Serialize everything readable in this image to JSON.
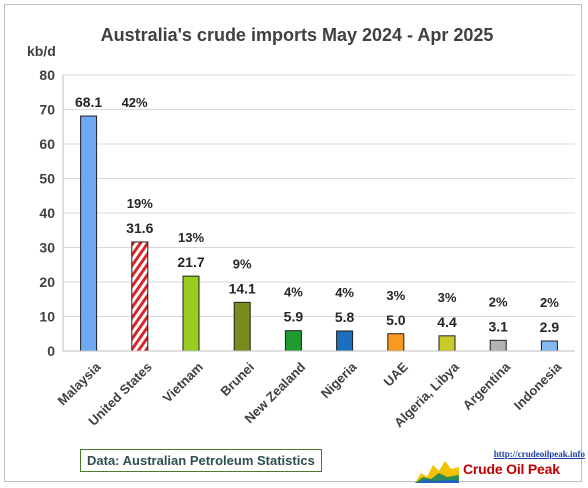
{
  "chart_data": {
    "type": "bar",
    "title": "Australia's crude imports May 2024 - Apr 2025",
    "ylabel": "kb/d",
    "ylim": [
      0,
      80
    ],
    "yticks": [
      0,
      10,
      20,
      30,
      40,
      50,
      60,
      70,
      80
    ],
    "grid": true,
    "categories": [
      "Malaysia",
      "United States",
      "Vietnam",
      "Brunei",
      "New Zealand",
      "Nigeria",
      "UAE",
      "Algeria, Libya",
      "Argentina",
      "Indonesia"
    ],
    "values": [
      68.1,
      31.6,
      21.7,
      14.1,
      5.9,
      5.8,
      5.0,
      4.4,
      3.1,
      2.9
    ],
    "value_labels": [
      "68.1",
      "31.6",
      "21.7",
      "14.1",
      "5.9",
      "5.8",
      "5.0",
      "4.4",
      "3.1",
      "2.9"
    ],
    "percent_labels": [
      "42%",
      "19%",
      "13%",
      "9%",
      "4%",
      "4%",
      "3%",
      "3%",
      "2%",
      "2%"
    ],
    "colors": [
      "#6fa8f5",
      "#d9262b",
      "#99cc1f",
      "#7a8a1c",
      "#1e9a2e",
      "#1b6fbf",
      "#f79a1f",
      "#c8cc2a",
      "#b3b3b3",
      "#86b8f0"
    ]
  },
  "source": "Data: Australian Petroleum Statistics",
  "logo": {
    "url": "http://crudeoilpeak.info",
    "name": "Crude Oil Peak"
  }
}
